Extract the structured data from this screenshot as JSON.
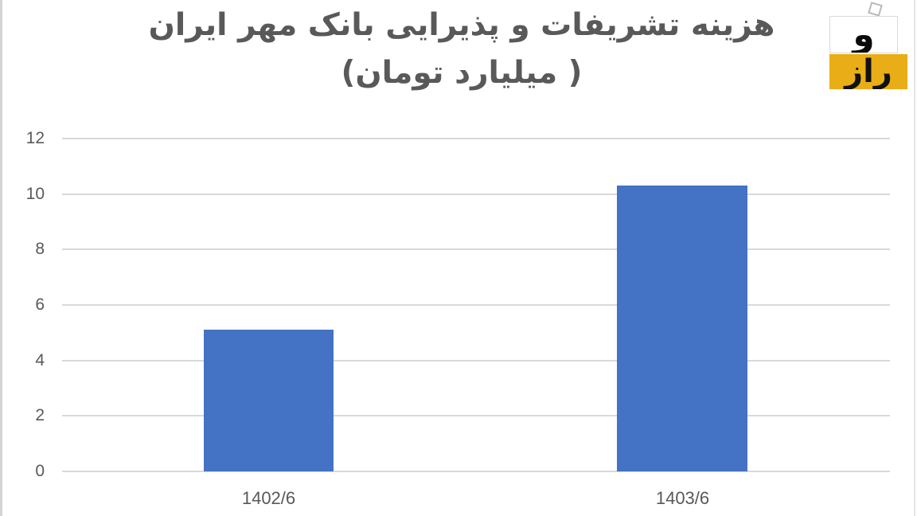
{
  "title": {
    "line1": "هزینه تشریفات و پذیرایی بانک مهر ایران",
    "line2": "( میلیارد تومان)"
  },
  "logo": {
    "letter": "و",
    "word": "راز",
    "yellow_color": "#E9AD17",
    "diamond_icon": "rotated-square-outline"
  },
  "chart_data": {
    "type": "bar",
    "title": "هزینه تشریفات و پذیرایی بانک مهر ایران ( میلیارد تومان)",
    "categories": [
      "1402/6",
      "1403/6"
    ],
    "values": [
      5.1,
      10.3
    ],
    "xlabel": "",
    "ylabel": "",
    "ylim": [
      0,
      12
    ],
    "yticks": [
      0,
      2,
      4,
      6,
      8,
      10,
      12
    ],
    "grid": true,
    "legend": false,
    "bar_color": "#4472C4",
    "gridline_color": "#D9D9D9",
    "tick_label_color": "#595959",
    "title_color": "#595959"
  }
}
